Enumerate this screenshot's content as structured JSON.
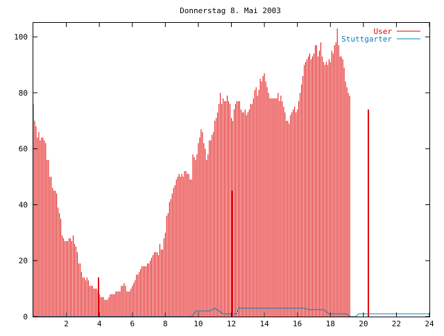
{
  "chart_data": {
    "type": "bar",
    "title": "Donnerstag 8. Mai 2003",
    "xlabel": "",
    "ylabel": "",
    "xlim": [
      0,
      24
    ],
    "ylim": [
      0,
      105
    ],
    "x_ticks": [
      2,
      4,
      6,
      8,
      10,
      12,
      14,
      16,
      18,
      20,
      22,
      24
    ],
    "x_tick_labels": [
      "2",
      "4",
      "6",
      "8",
      "10",
      "12",
      "14",
      "16",
      "18",
      "20",
      "22",
      "24"
    ],
    "y_ticks": [
      0,
      20,
      40,
      60,
      80,
      100
    ],
    "y_tick_labels": [
      "0",
      "20",
      "40",
      "60",
      "80",
      "100"
    ],
    "grid": false,
    "legend_position": "top-right",
    "series": [
      {
        "name": "User",
        "color": "#e00000",
        "style": "impulses",
        "x_start": 0,
        "x_step": 0.0833333,
        "values": [
          76,
          70,
          68,
          64,
          66,
          63,
          64,
          64,
          63,
          62,
          56,
          56,
          50,
          50,
          46,
          45,
          45,
          44,
          39,
          37,
          35,
          29,
          28,
          27,
          27,
          27,
          28,
          28,
          27,
          29,
          26,
          25,
          23,
          19,
          19,
          16,
          14,
          14,
          13,
          14,
          13,
          11,
          11,
          11,
          10,
          10,
          10,
          9,
          8,
          7,
          7,
          7,
          6,
          6,
          6,
          7,
          8,
          8,
          8,
          8,
          9,
          9,
          9,
          9,
          11,
          11,
          12,
          11,
          9,
          9,
          9,
          10,
          11,
          12,
          13,
          15,
          15,
          16,
          17,
          18,
          18,
          18,
          18,
          19,
          19,
          20,
          21,
          22,
          23,
          23,
          23,
          22,
          26,
          24,
          24,
          28,
          30,
          36,
          37,
          41,
          42,
          44,
          46,
          47,
          49,
          50,
          51,
          50,
          51,
          50,
          52,
          52,
          51,
          51,
          49,
          49,
          58,
          57,
          56,
          58,
          62,
          64,
          67,
          66,
          62,
          60,
          56,
          58,
          63,
          63,
          65,
          66,
          70,
          71,
          73,
          76,
          80,
          76,
          78,
          77,
          77,
          79,
          77,
          76,
          71,
          70,
          74,
          76,
          77,
          77,
          77,
          74,
          73,
          73,
          74,
          72,
          73,
          74,
          76,
          76,
          78,
          81,
          82,
          79,
          81,
          85,
          84,
          86,
          87,
          84,
          82,
          80,
          78,
          78,
          78,
          78,
          78,
          78,
          80,
          77,
          79,
          77,
          75,
          73,
          70,
          70,
          69,
          72,
          73,
          74,
          75,
          73,
          74,
          77,
          80,
          83,
          86,
          90,
          91,
          92,
          93,
          94,
          92,
          93,
          94,
          97,
          97,
          93,
          95,
          98,
          93,
          91,
          90,
          91,
          90,
          92,
          91,
          95,
          94,
          97,
          98,
          103,
          97,
          93,
          93,
          92,
          89,
          84,
          82,
          80,
          79
        ],
        "spikes": [
          {
            "x": 3.95,
            "y": 14
          },
          {
            "x": 12.05,
            "y": 45
          },
          {
            "x": 20.3,
            "y": 74
          }
        ]
      },
      {
        "name": "Stuttgarter",
        "color": "#0080c0",
        "style": "line",
        "points": [
          [
            0,
            0
          ],
          [
            9.6,
            0
          ],
          [
            9.85,
            2
          ],
          [
            10.7,
            2
          ],
          [
            11.0,
            3
          ],
          [
            11.25,
            2
          ],
          [
            11.5,
            1
          ],
          [
            12.3,
            1
          ],
          [
            12.45,
            3
          ],
          [
            16.4,
            3
          ],
          [
            16.7,
            2.5
          ],
          [
            17.6,
            2.5
          ],
          [
            17.9,
            1
          ],
          [
            19.0,
            1
          ],
          [
            19.15,
            0
          ],
          [
            19.55,
            0
          ],
          [
            19.7,
            1
          ],
          [
            24,
            1
          ]
        ]
      }
    ]
  }
}
